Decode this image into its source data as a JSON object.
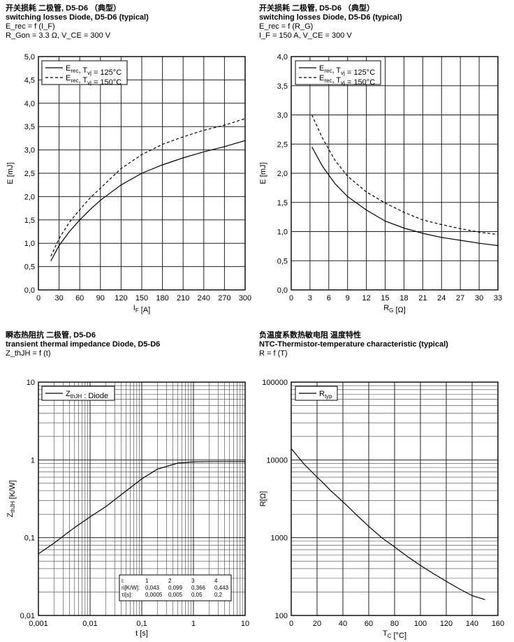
{
  "chart_data": [
    {
      "type": "line",
      "title_cn": "开关损耗 二极管, D5-D6 （典型）",
      "title": "switching losses Diode, D5-D6 (typical)",
      "subtitle": "E_rec = f (I_F)",
      "condition": "R_Gon = 3.3 Ω, V_CE = 300 V",
      "xlabel": "I_F [A]",
      "ylabel": "E [mJ]",
      "xlim": [
        0,
        300
      ],
      "ylim": [
        0,
        5
      ],
      "xticks": [
        "0",
        "30",
        "60",
        "90",
        "120",
        "150",
        "180",
        "210",
        "240",
        "270",
        "300"
      ],
      "yticks": [
        "0,0",
        "0,5",
        "1,0",
        "1,5",
        "2,0",
        "2,5",
        "3,0",
        "3,5",
        "4,0",
        "4,5",
        "5,0"
      ],
      "legend": [
        {
          "name": "E_rec, T_vj = 125°C",
          "style": "solid"
        },
        {
          "name": "E_rec, T_vj = 150°C",
          "style": "dashed"
        }
      ],
      "series": [
        {
          "name": "E_rec, T_vj = 125°C",
          "style": "solid",
          "x": [
            18,
            30,
            45,
            60,
            75,
            90,
            120,
            150,
            180,
            210,
            240,
            270,
            300
          ],
          "y": [
            0.62,
            0.95,
            1.25,
            1.5,
            1.72,
            1.92,
            2.25,
            2.5,
            2.68,
            2.83,
            2.96,
            3.07,
            3.2
          ]
        },
        {
          "name": "E_rec, T_vj = 150°C",
          "style": "dashed",
          "x": [
            18,
            30,
            45,
            60,
            75,
            90,
            120,
            150,
            180,
            210,
            240,
            270,
            300
          ],
          "y": [
            0.72,
            1.1,
            1.45,
            1.72,
            1.97,
            2.18,
            2.6,
            2.9,
            3.12,
            3.28,
            3.42,
            3.53,
            3.67
          ]
        }
      ]
    },
    {
      "type": "line",
      "title_cn": "开关损耗 二极管, D5-D6 （典型）",
      "title": "switching losses Diode, D5-D6 (typical)",
      "subtitle": "E_rec = f (R_G)",
      "condition": "I_F = 150 A, V_CE = 300 V",
      "xlabel": "R_G [Ω]",
      "ylabel": "E [mJ]",
      "xlim": [
        0,
        33
      ],
      "ylim": [
        0,
        4
      ],
      "xticks": [
        "0",
        "3",
        "6",
        "9",
        "12",
        "15",
        "18",
        "21",
        "24",
        "27",
        "30",
        "33"
      ],
      "yticks": [
        "0,0",
        "0,5",
        "1,0",
        "1,5",
        "2,0",
        "2,5",
        "3,0",
        "3,5",
        "4,0"
      ],
      "legend": [
        {
          "name": "E_rec, T_vj = 125°C",
          "style": "solid"
        },
        {
          "name": "E_rec, T_vj = 150°C",
          "style": "dashed"
        }
      ],
      "series": [
        {
          "name": "E_rec, T_vj = 125°C",
          "style": "solid",
          "x": [
            3.3,
            5,
            7,
            9,
            12,
            15,
            18,
            21,
            24,
            27,
            30,
            33
          ],
          "y": [
            2.45,
            2.12,
            1.82,
            1.6,
            1.37,
            1.18,
            1.06,
            0.97,
            0.9,
            0.85,
            0.8,
            0.76
          ]
        },
        {
          "name": "E_rec, T_vj = 150°C",
          "style": "dashed",
          "x": [
            3.3,
            5,
            7,
            9,
            12,
            15,
            18,
            21,
            24,
            27,
            30,
            33
          ],
          "y": [
            3.0,
            2.6,
            2.22,
            1.95,
            1.68,
            1.49,
            1.33,
            1.2,
            1.12,
            1.05,
            0.99,
            0.95
          ]
        }
      ]
    },
    {
      "type": "line",
      "scale": "log-log",
      "title_cn": "瞬态热阻抗 二极管, D5-D6",
      "title": "transient thermal impedance Diode, D5-D6",
      "subtitle": "Z_thJH = f (t)",
      "xlabel": "t [s]",
      "ylabel": "Z_thJH [K/W]",
      "xlim": [
        0.001,
        10
      ],
      "ylim": [
        0.01,
        10
      ],
      "xticks": [
        "0,001",
        "0,01",
        "0,1",
        "1",
        "10"
      ],
      "yticks": [
        "0,01",
        "0,1",
        "1",
        "10"
      ],
      "legend": [
        {
          "name": "Z_thJH : Diode",
          "style": "solid"
        }
      ],
      "series": [
        {
          "name": "Z_thJH : Diode",
          "style": "solid",
          "x": [
            0.001,
            0.002,
            0.005,
            0.01,
            0.02,
            0.05,
            0.1,
            0.2,
            0.5,
            1,
            2,
            5,
            10
          ],
          "y": [
            0.062,
            0.085,
            0.135,
            0.185,
            0.25,
            0.4,
            0.57,
            0.76,
            0.91,
            0.945,
            0.951,
            0.951,
            0.951
          ]
        }
      ],
      "table": {
        "header": [
          "i:",
          "1",
          "2",
          "3",
          "4"
        ],
        "rows": [
          [
            "ri[K/W]:",
            "0,043",
            "0,099",
            "0,366",
            "0,443"
          ],
          [
            "τi[s]:",
            "0,0005",
            "0,005",
            "0,05",
            "0,2"
          ]
        ]
      }
    },
    {
      "type": "line",
      "scale": "lin-log",
      "title_cn": "负温度系数热敏电阻 温度特性",
      "title": "NTC-Thermistor-temperature characteristic (typical)",
      "subtitle": "R = f (T)",
      "xlabel": "T_C [°C]",
      "ylabel": "R[Ω]",
      "xlim": [
        0,
        160
      ],
      "ylim": [
        100,
        100000
      ],
      "xticks": [
        "0",
        "20",
        "40",
        "60",
        "80",
        "100",
        "120",
        "140",
        "160"
      ],
      "yticks": [
        "100",
        "1000",
        "10000",
        "100000"
      ],
      "legend": [
        {
          "name": "R_typ",
          "style": "solid"
        }
      ],
      "series": [
        {
          "name": "R_typ",
          "style": "solid",
          "x": [
            0,
            10,
            20,
            25,
            30,
            40,
            50,
            60,
            70,
            80,
            90,
            100,
            110,
            120,
            130,
            140,
            150
          ],
          "y": [
            14000,
            8800,
            6000,
            5000,
            4100,
            2900,
            2000,
            1400,
            1000,
            760,
            570,
            440,
            345,
            275,
            220,
            180,
            160
          ]
        }
      ]
    }
  ]
}
